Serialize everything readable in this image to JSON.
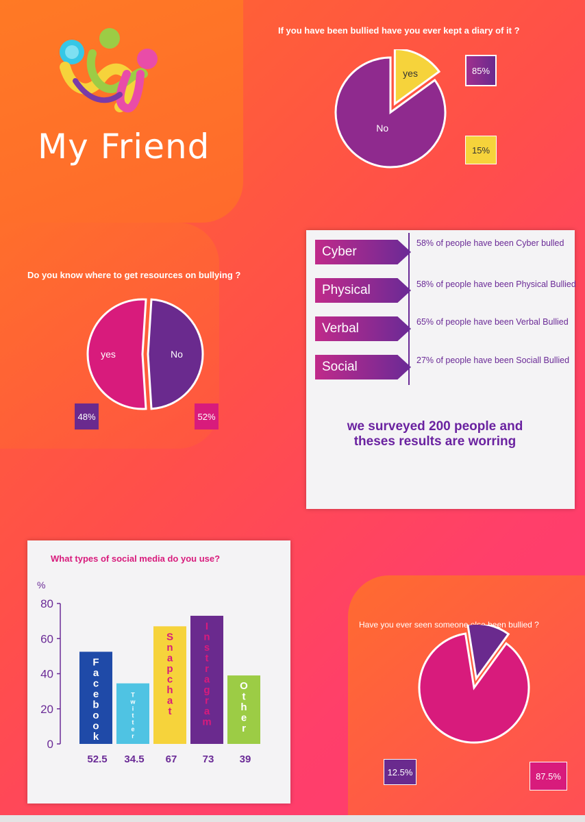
{
  "brand": {
    "name": "My Friend",
    "logo": "people-hug-logo"
  },
  "colors": {
    "purple": "#6a2a8e",
    "magenta": "#d81b7c",
    "yellow": "#f6d33b",
    "orange": "#ff6a2b"
  },
  "diary": {
    "question": "If you have been bullied have you ever kept a diary of it ?",
    "no_label": "No",
    "yes_label": "yes",
    "no_pct": "85%",
    "yes_pct": "15%"
  },
  "resources": {
    "question": "Do you know where to get resources on bullying ?",
    "no_label": "No",
    "yes_label": "yes",
    "no_pct": "48%",
    "yes_pct": "52%"
  },
  "bully_types": [
    {
      "label": "Cyber",
      "text": "58% of people have been Cyber bulled"
    },
    {
      "label": "Physical",
      "text": "58% of people have been Physical Bullied"
    },
    {
      "label": "Verbal",
      "text": "65% of people have been Verbal Bullied"
    },
    {
      "label": "Social",
      "text": " 27% of people have been Sociall Bullied"
    }
  ],
  "survey_note": "we surveyed 200 people and theses results are worring",
  "witness": {
    "question": "Have you ever seen someone else been bullied ?",
    "small_pct": "12.5%",
    "large_pct": "87.5%"
  },
  "chart_data": [
    {
      "type": "pie",
      "title": "If you have been bullied have you ever kept a diary of it ?",
      "labels": [
        "No",
        "yes"
      ],
      "values": [
        85,
        15
      ],
      "colors": [
        "#8f2a8e",
        "#f6d33b"
      ]
    },
    {
      "type": "pie",
      "title": "Do you know where to get resources on bullying ?",
      "labels": [
        "No",
        "yes"
      ],
      "values": [
        48,
        52
      ],
      "colors": [
        "#6a2a8e",
        "#d81b7c"
      ]
    },
    {
      "type": "bar",
      "title": "What types of social media do you use?",
      "ylabel": "%",
      "categories": [
        "Facebook",
        "Twitter",
        "Snapchat",
        "Instragram",
        "Other"
      ],
      "values": [
        52.5,
        34.5,
        67,
        73,
        39
      ],
      "value_labels": [
        "52.5",
        "34.5",
        "67",
        "73",
        "39"
      ],
      "colors": [
        "#1f4aa8",
        "#4fc3e3",
        "#f6d33b",
        "#6a2a8e",
        "#9ccc45"
      ],
      "label_colors": [
        "#ffffff",
        "#ffffff",
        "#d81b7c",
        "#d81b7c",
        "#ffffff"
      ],
      "ylim": [
        0,
        80
      ],
      "yticks": [
        "0",
        "20",
        "40",
        "60",
        "80"
      ]
    },
    {
      "type": "pie",
      "title": "Have you ever seen someone else been bullied ?",
      "labels": [
        "",
        ""
      ],
      "values": [
        87.5,
        12.5
      ],
      "colors": [
        "#d81b7c",
        "#6a2a8e"
      ]
    }
  ]
}
